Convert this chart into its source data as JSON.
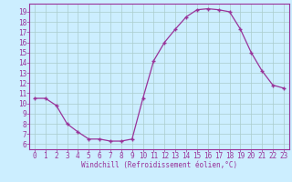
{
  "x": [
    0,
    1,
    2,
    3,
    4,
    5,
    6,
    7,
    8,
    9,
    10,
    11,
    12,
    13,
    14,
    15,
    16,
    17,
    18,
    19,
    20,
    21,
    22,
    23
  ],
  "y": [
    10.5,
    10.5,
    9.8,
    8.0,
    7.2,
    6.5,
    6.5,
    6.3,
    6.3,
    6.5,
    10.5,
    14.2,
    16.0,
    17.3,
    18.5,
    19.2,
    19.3,
    19.2,
    19.0,
    17.3,
    15.0,
    13.2,
    11.8,
    11.5
  ],
  "xlabel": "Windchill (Refroidissement éolien,°C)",
  "xlim": [
    -0.5,
    23.5
  ],
  "ylim": [
    5.5,
    19.8
  ],
  "yticks": [
    6,
    7,
    8,
    9,
    10,
    11,
    12,
    13,
    14,
    15,
    16,
    17,
    18,
    19
  ],
  "xticks": [
    0,
    1,
    2,
    3,
    4,
    5,
    6,
    7,
    8,
    9,
    10,
    11,
    12,
    13,
    14,
    15,
    16,
    17,
    18,
    19,
    20,
    21,
    22,
    23
  ],
  "line_color": "#993399",
  "marker": "+",
  "bg_color": "#cceeff",
  "grid_color": "#aacccc",
  "tick_label_color": "#993399",
  "xlabel_color": "#993399",
  "spine_color": "#993399"
}
